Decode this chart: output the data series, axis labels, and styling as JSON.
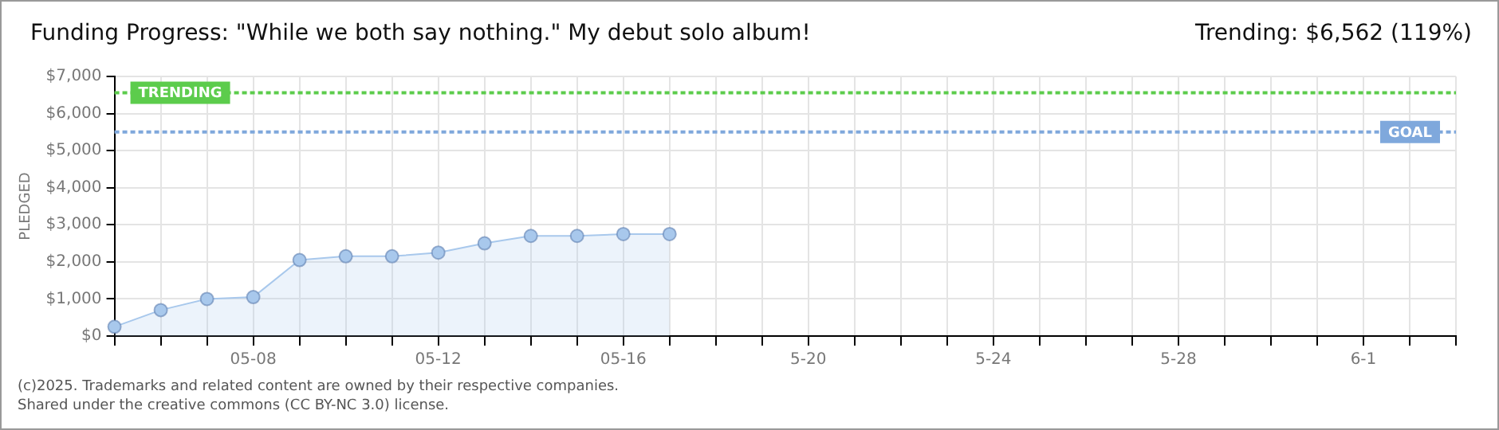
{
  "chart_data": {
    "type": "area",
    "title": "Funding Progress: \"While we both say nothing.\" My debut solo album!",
    "subtitle": "Trending: $6,562 (119%)",
    "ylabel": "PLEDGED",
    "categories": [
      null,
      null,
      null,
      "05-08",
      null,
      null,
      null,
      "05-12",
      null,
      null,
      null,
      "05-16",
      null,
      null,
      null,
      "5-20",
      null,
      null,
      null,
      "5-24",
      null,
      null,
      null,
      "5-28",
      null,
      null,
      null,
      "6-1",
      null,
      null
    ],
    "series": [
      {
        "color": "#a8c8ec",
        "values": [
          250,
          700,
          1000,
          1050,
          2050,
          2150,
          2150,
          2250,
          2500,
          2700,
          2700,
          2750,
          2750,
          null,
          null,
          null,
          null,
          null,
          null,
          null,
          null,
          null,
          null,
          null,
          null,
          null,
          null,
          null,
          null,
          null
        ]
      }
    ],
    "ylim": [
      0,
      7000
    ],
    "yticks": [
      {
        "value": 0,
        "label": "$0"
      },
      {
        "value": 1000,
        "label": "$1,000"
      },
      {
        "value": 2000,
        "label": "$2,000"
      },
      {
        "value": 3000,
        "label": "$3,000"
      },
      {
        "value": 4000,
        "label": "$4,000"
      },
      {
        "value": 5000,
        "label": "$5,000"
      },
      {
        "value": 6000,
        "label": "$6,000"
      },
      {
        "value": 7000,
        "label": "$7,000"
      }
    ],
    "ref_lines": [
      {
        "axis": "y",
        "value": 6562,
        "label": "TRENDING",
        "color": "#5ccc4c",
        "line_style": "dotted"
      },
      {
        "axis": "y",
        "value": 5500,
        "label": "GOAL",
        "color": "#7fa8dc",
        "line_style": "dotted"
      }
    ],
    "grid": true,
    "legend": false,
    "marker": "circle",
    "line_style": "solid",
    "annotations": [
      "(c)2025. Trademarks and related content are owned by their respective companies.",
      "Shared under the creative commons (CC BY-NC 3.0) license."
    ]
  }
}
